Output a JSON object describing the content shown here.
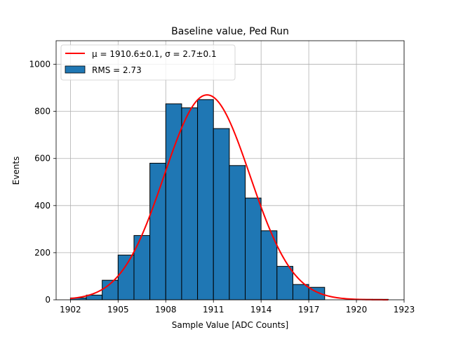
{
  "chart_data": {
    "type": "bar",
    "title": "Baseline value, Ped Run",
    "xlabel": "Sample Value [ADC Counts]",
    "ylabel": "Events",
    "xlim": [
      1901.1,
      1923.0
    ],
    "ylim": [
      0,
      1100
    ],
    "xticks": [
      1902,
      1905,
      1908,
      1911,
      1914,
      1917,
      1920,
      1923
    ],
    "yticks": [
      0,
      200,
      400,
      600,
      800,
      1000
    ],
    "grid": true,
    "legend_position": "top-left",
    "histogram": {
      "name": "RMS = 2.73",
      "color": "#1f77b4",
      "bin_width": 1,
      "bins": [
        {
          "x": 1902.5,
          "value": 8
        },
        {
          "x": 1903.5,
          "value": 20
        },
        {
          "x": 1904.5,
          "value": 83
        },
        {
          "x": 1905.5,
          "value": 190
        },
        {
          "x": 1906.5,
          "value": 273
        },
        {
          "x": 1907.5,
          "value": 580
        },
        {
          "x": 1908.5,
          "value": 832
        },
        {
          "x": 1909.5,
          "value": 815
        },
        {
          "x": 1910.5,
          "value": 850
        },
        {
          "x": 1911.5,
          "value": 727
        },
        {
          "x": 1912.5,
          "value": 570
        },
        {
          "x": 1913.5,
          "value": 432
        },
        {
          "x": 1914.5,
          "value": 293
        },
        {
          "x": 1915.5,
          "value": 142
        },
        {
          "x": 1916.5,
          "value": 65
        },
        {
          "x": 1917.5,
          "value": 53
        },
        {
          "x": 1918.5,
          "value": 0
        },
        {
          "x": 1919.5,
          "value": 0
        },
        {
          "x": 1920.5,
          "value": 2
        },
        {
          "x": 1921.5,
          "value": 2
        }
      ]
    },
    "fit": {
      "name": "μ = 1910.6±0.1, σ = 2.7±0.1",
      "color": "#ff0000",
      "mu": 1910.6,
      "sigma": 2.7,
      "amplitude": 870,
      "x_range": [
        1902,
        1922
      ]
    }
  }
}
